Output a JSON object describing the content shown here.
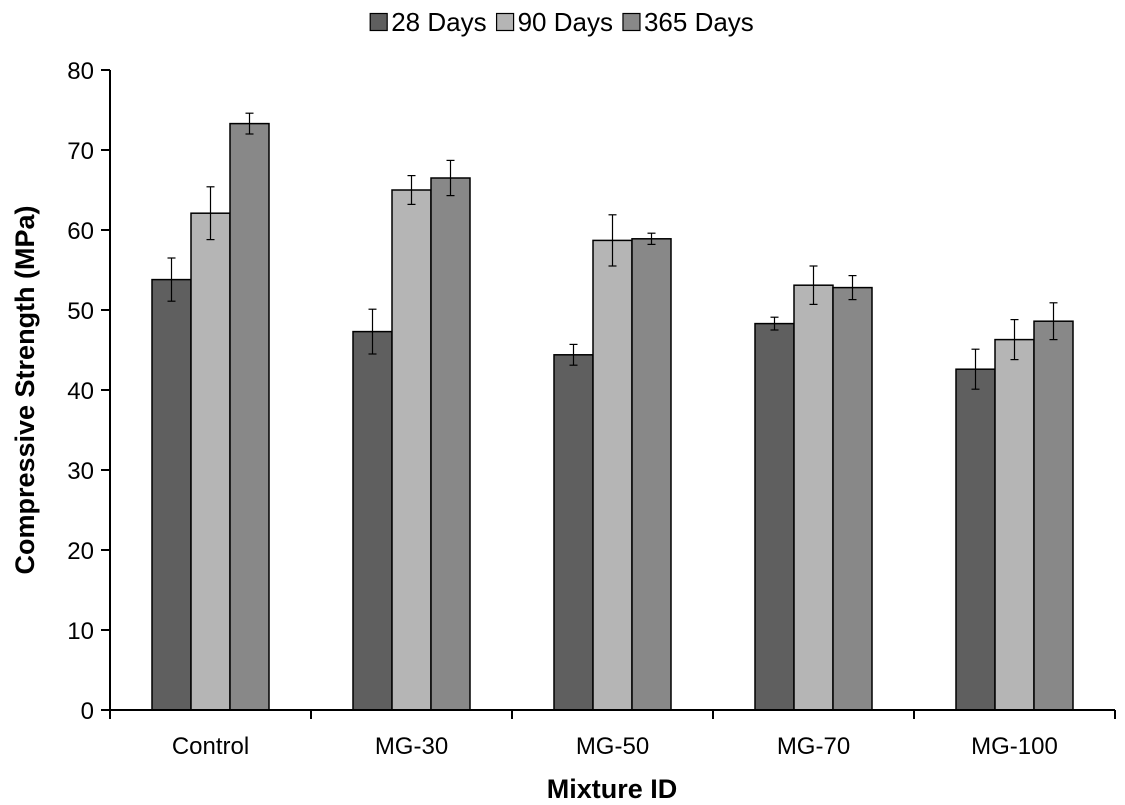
{
  "chart_data": {
    "type": "bar",
    "title": "",
    "xlabel": "Mixture ID",
    "ylabel": "Compressive Strength (MPa)",
    "ylim": [
      0,
      80
    ],
    "yticks": [
      0,
      10,
      20,
      30,
      40,
      50,
      60,
      70,
      80
    ],
    "grid": false,
    "legend_position": "top-center",
    "categories": [
      "Control",
      "MG-30",
      "MG-50",
      "MG-70",
      "MG-100"
    ],
    "series": [
      {
        "name": "28 Days",
        "color": "#5f5f5f",
        "values": [
          53.8,
          47.3,
          44.4,
          48.3,
          42.6
        ],
        "errors": [
          2.7,
          2.8,
          1.3,
          0.8,
          2.5
        ]
      },
      {
        "name": "90 Days",
        "color": "#b5b5b5",
        "values": [
          62.1,
          65.0,
          58.7,
          53.1,
          46.3
        ],
        "errors": [
          3.3,
          1.8,
          3.2,
          2.4,
          2.5
        ]
      },
      {
        "name": "365 Days",
        "color": "#888888",
        "values": [
          73.3,
          66.5,
          58.9,
          52.8,
          48.6
        ],
        "errors": [
          1.3,
          2.2,
          0.7,
          1.5,
          2.3
        ]
      }
    ]
  }
}
